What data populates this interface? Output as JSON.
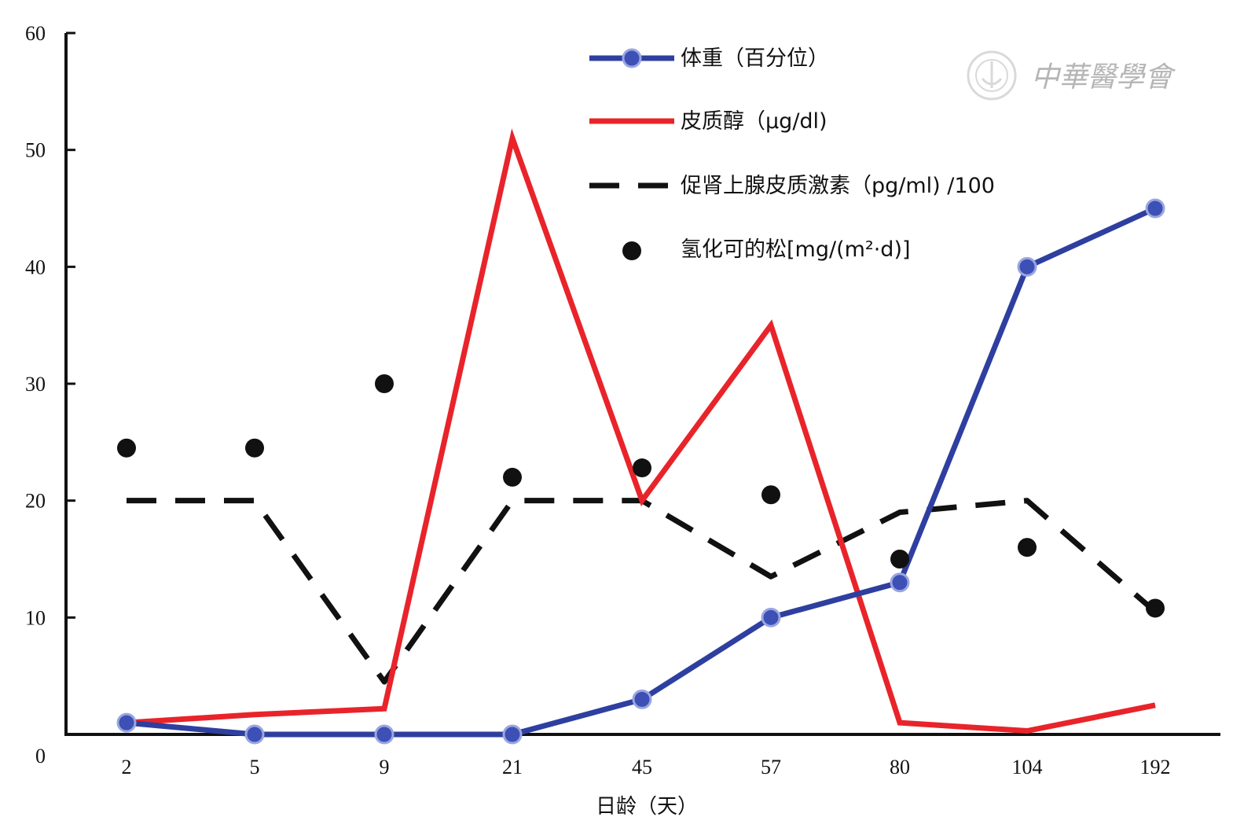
{
  "chart_data": {
    "type": "line",
    "categories": [
      "2",
      "5",
      "9",
      "21",
      "45",
      "57",
      "80",
      "104",
      "192"
    ],
    "xlabel": "日龄（天）",
    "ylabel": "",
    "ylim": [
      0,
      60
    ],
    "y_ticks": [
      0,
      10,
      20,
      30,
      40,
      50,
      60
    ],
    "y_tick_labels": [
      "0",
      "10",
      "20",
      "30",
      "40",
      "50",
      "60"
    ],
    "grid": false,
    "legend_position": "top-right",
    "series": [
      {
        "name": "体重（百分位）",
        "style": "line-marker",
        "color": "#2e3fa0",
        "values": [
          1,
          0,
          0,
          0,
          3,
          10,
          13,
          40,
          45
        ]
      },
      {
        "name": "皮质醇（μg/dl)",
        "style": "line",
        "color": "#e8242a",
        "values": [
          1,
          1.7,
          2.2,
          51,
          20,
          35,
          1,
          0.3,
          2.5
        ]
      },
      {
        "name": "促肾上腺皮质激素（pg/ml) /100",
        "style": "dashed",
        "color": "#111111",
        "values": [
          20,
          20,
          4.5,
          20,
          20,
          13.5,
          19,
          20,
          10.5
        ]
      },
      {
        "name": "氢化可的松[mg/(m²·d)]",
        "style": "points",
        "color": "#111111",
        "values": [
          24.5,
          24.5,
          30,
          22,
          22.8,
          20.5,
          15,
          16,
          10.8
        ]
      }
    ]
  },
  "watermark": {
    "text": "中華醫學會"
  }
}
